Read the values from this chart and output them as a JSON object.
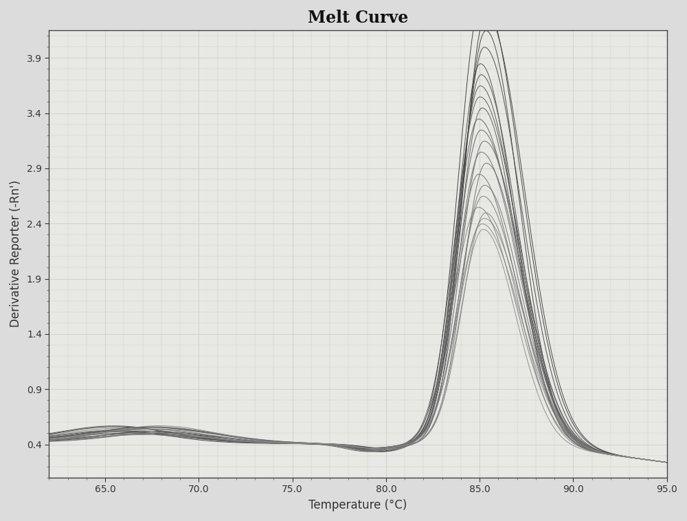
{
  "title": "Melt Curve",
  "xlabel": "Temperature (°C)",
  "ylabel": "Derivative Reporter (-Rn')",
  "xlim": [
    62.0,
    95.0
  ],
  "ylim": [
    0.1,
    4.15
  ],
  "xticks": [
    65.0,
    70.0,
    75.0,
    80.0,
    85.0,
    90.0,
    95.0
  ],
  "yticks": [
    0.4,
    0.9,
    1.4,
    1.9,
    2.4,
    2.9,
    3.4,
    3.9
  ],
  "background_color": "#dcdcdc",
  "plot_bg_color": "#e8e8e4",
  "grid_color": "#c8cfc8",
  "n_curves": 22,
  "peak_temp": 85.0,
  "peak_heights": [
    4.05,
    3.9,
    3.75,
    3.6,
    3.45,
    3.35,
    3.25,
    3.15,
    3.05,
    2.95,
    2.85,
    2.75,
    2.65,
    2.55,
    2.45,
    2.35,
    2.25,
    2.15,
    2.1,
    2.05,
    2.0,
    1.95
  ],
  "title_fontsize": 17,
  "label_fontsize": 12,
  "tick_fontsize": 10,
  "title_fontweight": "bold"
}
